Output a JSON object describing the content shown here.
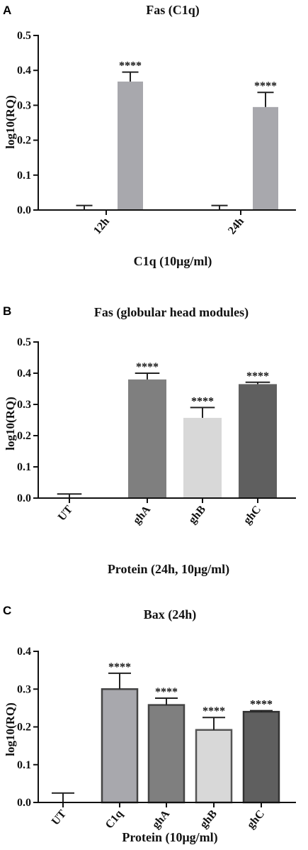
{
  "chart_data": [
    {
      "panel": "A",
      "type": "bar",
      "title": "Fas (C1q)",
      "xlabel": "C1q (10μg/ml)",
      "ylabel": "log10(RQ)",
      "ylim": [
        0,
        0.5
      ],
      "yticks": [
        "0.0",
        "0.1",
        "0.2",
        "0.3",
        "0.4",
        "0.5"
      ],
      "categories": [
        "12h",
        "24h"
      ],
      "bars": [
        {
          "group": "12h",
          "value": 0.0,
          "error": 0.013,
          "color": "#ffffff",
          "stroke": "#222222",
          "star": ""
        },
        {
          "group": "12h",
          "value": 0.368,
          "error": 0.027,
          "color": "#a8a8ad",
          "stroke": "none",
          "star": "****"
        },
        {
          "group": "24h",
          "value": 0.0,
          "error": 0.013,
          "color": "#ffffff",
          "stroke": "#222222",
          "star": ""
        },
        {
          "group": "24h",
          "value": 0.295,
          "error": 0.042,
          "color": "#a8a8ad",
          "stroke": "none",
          "star": "****"
        }
      ]
    },
    {
      "panel": "B",
      "type": "bar",
      "title": "Fas (globular head modules)",
      "xlabel": "Protein (24h, 10μg/ml)",
      "ylabel": "log10(RQ)",
      "ylim": [
        0,
        0.5
      ],
      "yticks": [
        "0.0",
        "0.1",
        "0.2",
        "0.3",
        "0.4",
        "0.5"
      ],
      "categories": [
        "UT",
        "ghA",
        "ghB",
        "ghC"
      ],
      "bars": [
        {
          "group": "UT",
          "value": 0.0,
          "error": 0.013,
          "color": "#ffffff",
          "stroke": "#222222",
          "star": ""
        },
        {
          "group": "ghA",
          "value": 0.38,
          "error": 0.02,
          "color": "#7f7f7f",
          "stroke": "none",
          "star": "****"
        },
        {
          "group": "ghB",
          "value": 0.257,
          "error": 0.033,
          "color": "#d8d8d8",
          "stroke": "none",
          "star": "****"
        },
        {
          "group": "ghC",
          "value": 0.365,
          "error": 0.006,
          "color": "#5f5f5f",
          "stroke": "none",
          "star": "****"
        }
      ]
    },
    {
      "panel": "C",
      "type": "bar",
      "title": "Bax (24h)",
      "xlabel": "Protein (10μg/ml)",
      "ylabel": "log10(RQ)",
      "ylim": [
        0,
        0.4
      ],
      "yticks": [
        "0.0",
        "0.1",
        "0.2",
        "0.3",
        "0.4"
      ],
      "categories": [
        "UT",
        "C1q",
        "ghA",
        "ghB",
        "ghC"
      ],
      "bars": [
        {
          "group": "UT",
          "value": 0.0,
          "error": 0.025,
          "color": "#ffffff",
          "stroke": "#222222",
          "star": ""
        },
        {
          "group": "C1q",
          "value": 0.3,
          "error": 0.042,
          "color": "#a8a8ad",
          "stroke": "#444444",
          "star": "****"
        },
        {
          "group": "ghA",
          "value": 0.258,
          "error": 0.018,
          "color": "#7f7f7f",
          "stroke": "#444444",
          "star": "****"
        },
        {
          "group": "ghB",
          "value": 0.192,
          "error": 0.033,
          "color": "#d8d8d8",
          "stroke": "#555555",
          "star": "****"
        },
        {
          "group": "ghC",
          "value": 0.24,
          "error": 0.003,
          "color": "#5f5f5f",
          "stroke": "#333333",
          "star": "****"
        }
      ]
    }
  ]
}
